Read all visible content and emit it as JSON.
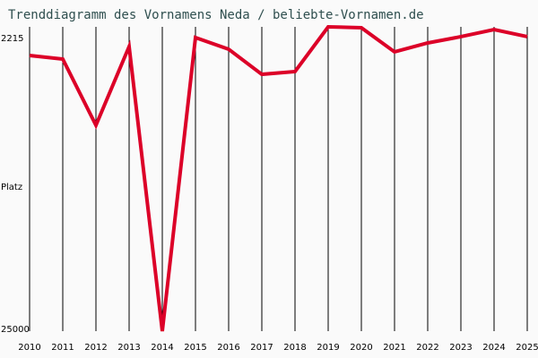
{
  "chart_data": {
    "type": "line",
    "title": "Trenddiagramm des Vornamens Neda / beliebte-Vornamen.de",
    "xlabel": "",
    "ylabel": "Platz",
    "y_inverted": true,
    "ylim": [
      2215,
      25000
    ],
    "ytick_labels": [
      "2215",
      "25000"
    ],
    "grid": "vertical lines per year",
    "x": [
      "2010",
      "2011",
      "2012",
      "2013",
      "2014",
      "2015",
      "2016",
      "2017",
      "2018",
      "2019",
      "2020",
      "2021",
      "2022",
      "2023",
      "2024",
      "2025"
    ],
    "series": [
      {
        "values": [
          4360,
          4630,
          9585,
          3690,
          25000,
          3020,
          3890,
          5770,
          5565,
          2215,
          2280,
          4090,
          3420,
          2950,
          2415,
          2950
        ],
        "color": "#dc0028"
      }
    ]
  }
}
